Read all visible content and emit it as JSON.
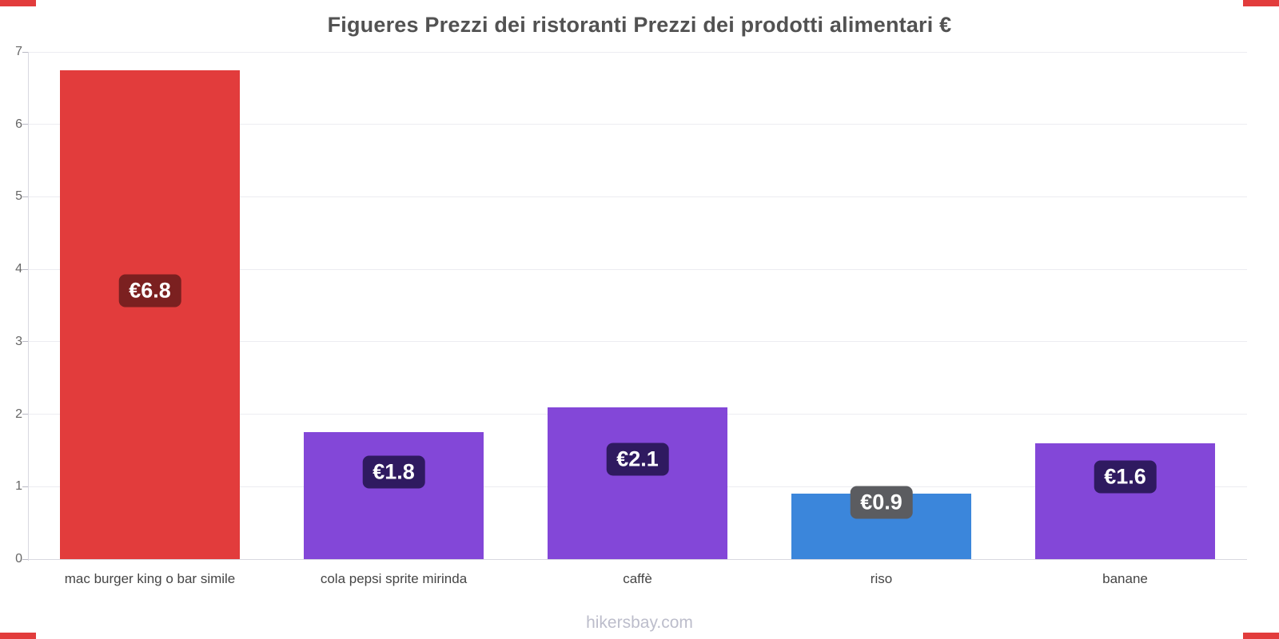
{
  "footer": {
    "text": "hikersbay.com"
  },
  "chart_data": {
    "type": "bar",
    "title": "Figueres Prezzi dei ristoranti Prezzi dei prodotti alimentari €",
    "categories": [
      "mac burger king o bar simile",
      "cola pepsi sprite mirinda",
      "caffè",
      "riso",
      "banane"
    ],
    "values": [
      6.75,
      1.75,
      2.1,
      0.9,
      1.6
    ],
    "labels": [
      "€6.8",
      "€1.8",
      "€2.1",
      "€0.9",
      "€1.6"
    ],
    "bar_colors": [
      "#e23c3c",
      "#8347d8",
      "#8347d8",
      "#3b86db",
      "#8347d8"
    ],
    "badge_colors": [
      "#7b2020",
      "#2f1a60",
      "#2f1a60",
      "#5b5c60",
      "#2f1a60"
    ],
    "xlabel": "",
    "ylabel": "",
    "ylim": [
      0,
      7
    ],
    "yticks": [
      0,
      1,
      2,
      3,
      4,
      5,
      6,
      7
    ],
    "grid": true,
    "legend": "none"
  }
}
